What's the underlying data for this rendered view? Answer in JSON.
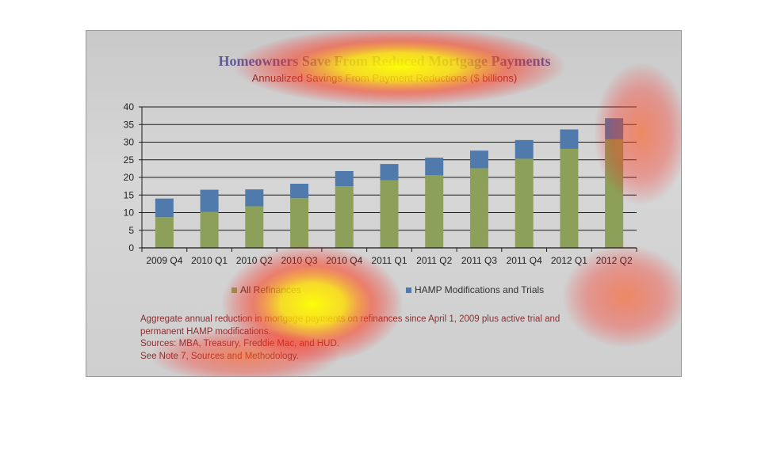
{
  "chart_data": {
    "type": "bar",
    "stacked": true,
    "title": "Homeowners Save From Reduced Mortgage Payments",
    "subtitle": "Annualized Savings From Payment Reductions ($ billions)",
    "categories": [
      "2009 Q4",
      "2010 Q1",
      "2010 Q2",
      "2010 Q3",
      "2010 Q4",
      "2011 Q1",
      "2011 Q2",
      "2011 Q3",
      "2011 Q4",
      "2012 Q1",
      "2012 Q2"
    ],
    "series": [
      {
        "name": "All Refinances",
        "color": "#8da05a",
        "values": [
          8.7,
          10.2,
          11.8,
          14.1,
          17.5,
          19.2,
          20.6,
          22.6,
          25.3,
          28.1,
          30.8
        ]
      },
      {
        "name": "HAMP Modifications and Trials",
        "color": "#4f7aab",
        "values": [
          5.3,
          6.3,
          4.8,
          4.1,
          4.3,
          4.6,
          5.0,
          5.0,
          5.3,
          5.5,
          6.0
        ]
      }
    ],
    "ylim": [
      0,
      40
    ],
    "yticks": [
      0,
      5,
      10,
      15,
      20,
      25,
      30,
      35,
      40
    ],
    "grid": true,
    "legend_position": "bottom"
  },
  "notes": [
    "Aggregate annual reduction in mortgage payments on refinances since April 1, 2009 plus active trial and",
    "permanent HAMP modifications.",
    "Sources:  MBA, Treasury, Freddie Mac, and HUD.",
    "See Note 7, Sources and Methodology."
  ],
  "heatmap_overlay": true
}
